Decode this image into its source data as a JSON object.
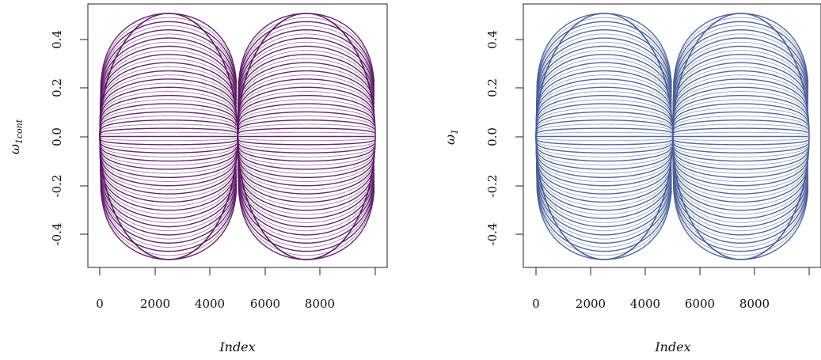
{
  "chart_data": [
    {
      "type": "line",
      "xlabel": "Index",
      "ylabel_base": "ω",
      "ylabel_sub": "1cont",
      "x_ticks": [
        "0",
        "2000",
        "4000",
        "6000",
        "8000"
      ],
      "y_ticks": [
        "-0.4",
        "-0.2",
        "0.0",
        "0.2",
        "0.4"
      ],
      "xlim": [
        0,
        10000
      ],
      "ylim": [
        -0.5,
        0.5
      ],
      "color": "#5c1a66",
      "series_description_values": {
        "index_range": [
          1,
          10000
        ],
        "lobes": 2,
        "lobe_centers": [
          2500,
          7500
        ],
        "amplitude_max": 0.5,
        "bands": 60
      }
    },
    {
      "type": "line",
      "xlabel": "Index",
      "ylabel_base": "ω",
      "ylabel_sub": "1",
      "x_ticks": [
        "0",
        "2000",
        "4000",
        "6000",
        "8000"
      ],
      "y_ticks": [
        "-0.4",
        "-0.2",
        "0.0",
        "0.2",
        "0.4"
      ],
      "xlim": [
        0,
        10000
      ],
      "ylim": [
        -0.5,
        0.5
      ],
      "color": "#4a5f97",
      "series_description_values": {
        "index_range": [
          1,
          10000
        ],
        "lobes": 2,
        "lobe_centers": [
          2500,
          7500
        ],
        "amplitude_max": 0.5,
        "bands": 60
      }
    }
  ]
}
